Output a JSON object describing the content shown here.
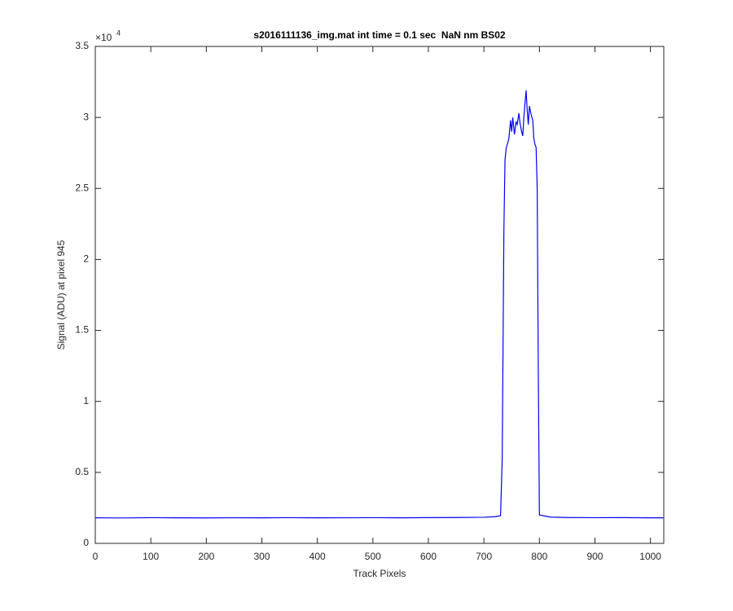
{
  "chart_data": {
    "type": "line",
    "title": "s2016111136_img.mat int time = 0.1 sec  NaN nm BS02",
    "xlabel": "Track Pixels",
    "ylabel": "Signal (ADU) at pixel 945",
    "y_multiplier": {
      "base": "×10",
      "exponent": "4"
    },
    "color": "#0000ff",
    "grid": false,
    "xlim": [
      0,
      1024
    ],
    "xticks": [
      0,
      100,
      200,
      300,
      400,
      500,
      600,
      700,
      800,
      900,
      1000
    ],
    "ylim": [
      0,
      35000
    ],
    "yticks": [
      {
        "value": 0,
        "label": "0"
      },
      {
        "value": 5000,
        "label": "0.5"
      },
      {
        "value": 10000,
        "label": "1"
      },
      {
        "value": 15000,
        "label": "1.5"
      },
      {
        "value": 20000,
        "label": "2"
      },
      {
        "value": 25000,
        "label": "2.5"
      },
      {
        "value": 30000,
        "label": "3"
      },
      {
        "value": 35000,
        "label": "3.5"
      }
    ],
    "x": [
      0,
      50,
      100,
      150,
      200,
      250,
      300,
      350,
      400,
      450,
      500,
      550,
      600,
      650,
      700,
      720,
      730,
      733,
      736,
      738,
      740,
      745,
      748,
      750,
      752,
      755,
      758,
      760,
      763,
      765,
      768,
      770,
      772,
      774,
      776,
      778,
      780,
      782,
      785,
      788,
      790,
      792,
      794,
      796,
      798,
      800,
      820,
      850,
      900,
      950,
      1000,
      1023
    ],
    "values": [
      1800,
      1790,
      1810,
      1800,
      1795,
      1805,
      1800,
      1810,
      1800,
      1805,
      1810,
      1800,
      1815,
      1820,
      1840,
      1880,
      1950,
      6000,
      22000,
      27000,
      27800,
      28500,
      29800,
      29000,
      30000,
      28800,
      29700,
      29500,
      30300,
      29600,
      29000,
      28700,
      30000,
      31000,
      31900,
      30500,
      29500,
      30800,
      30200,
      29800,
      28500,
      28100,
      27900,
      25000,
      12000,
      2000,
      1850,
      1820,
      1810,
      1815,
      1800,
      1800
    ]
  }
}
